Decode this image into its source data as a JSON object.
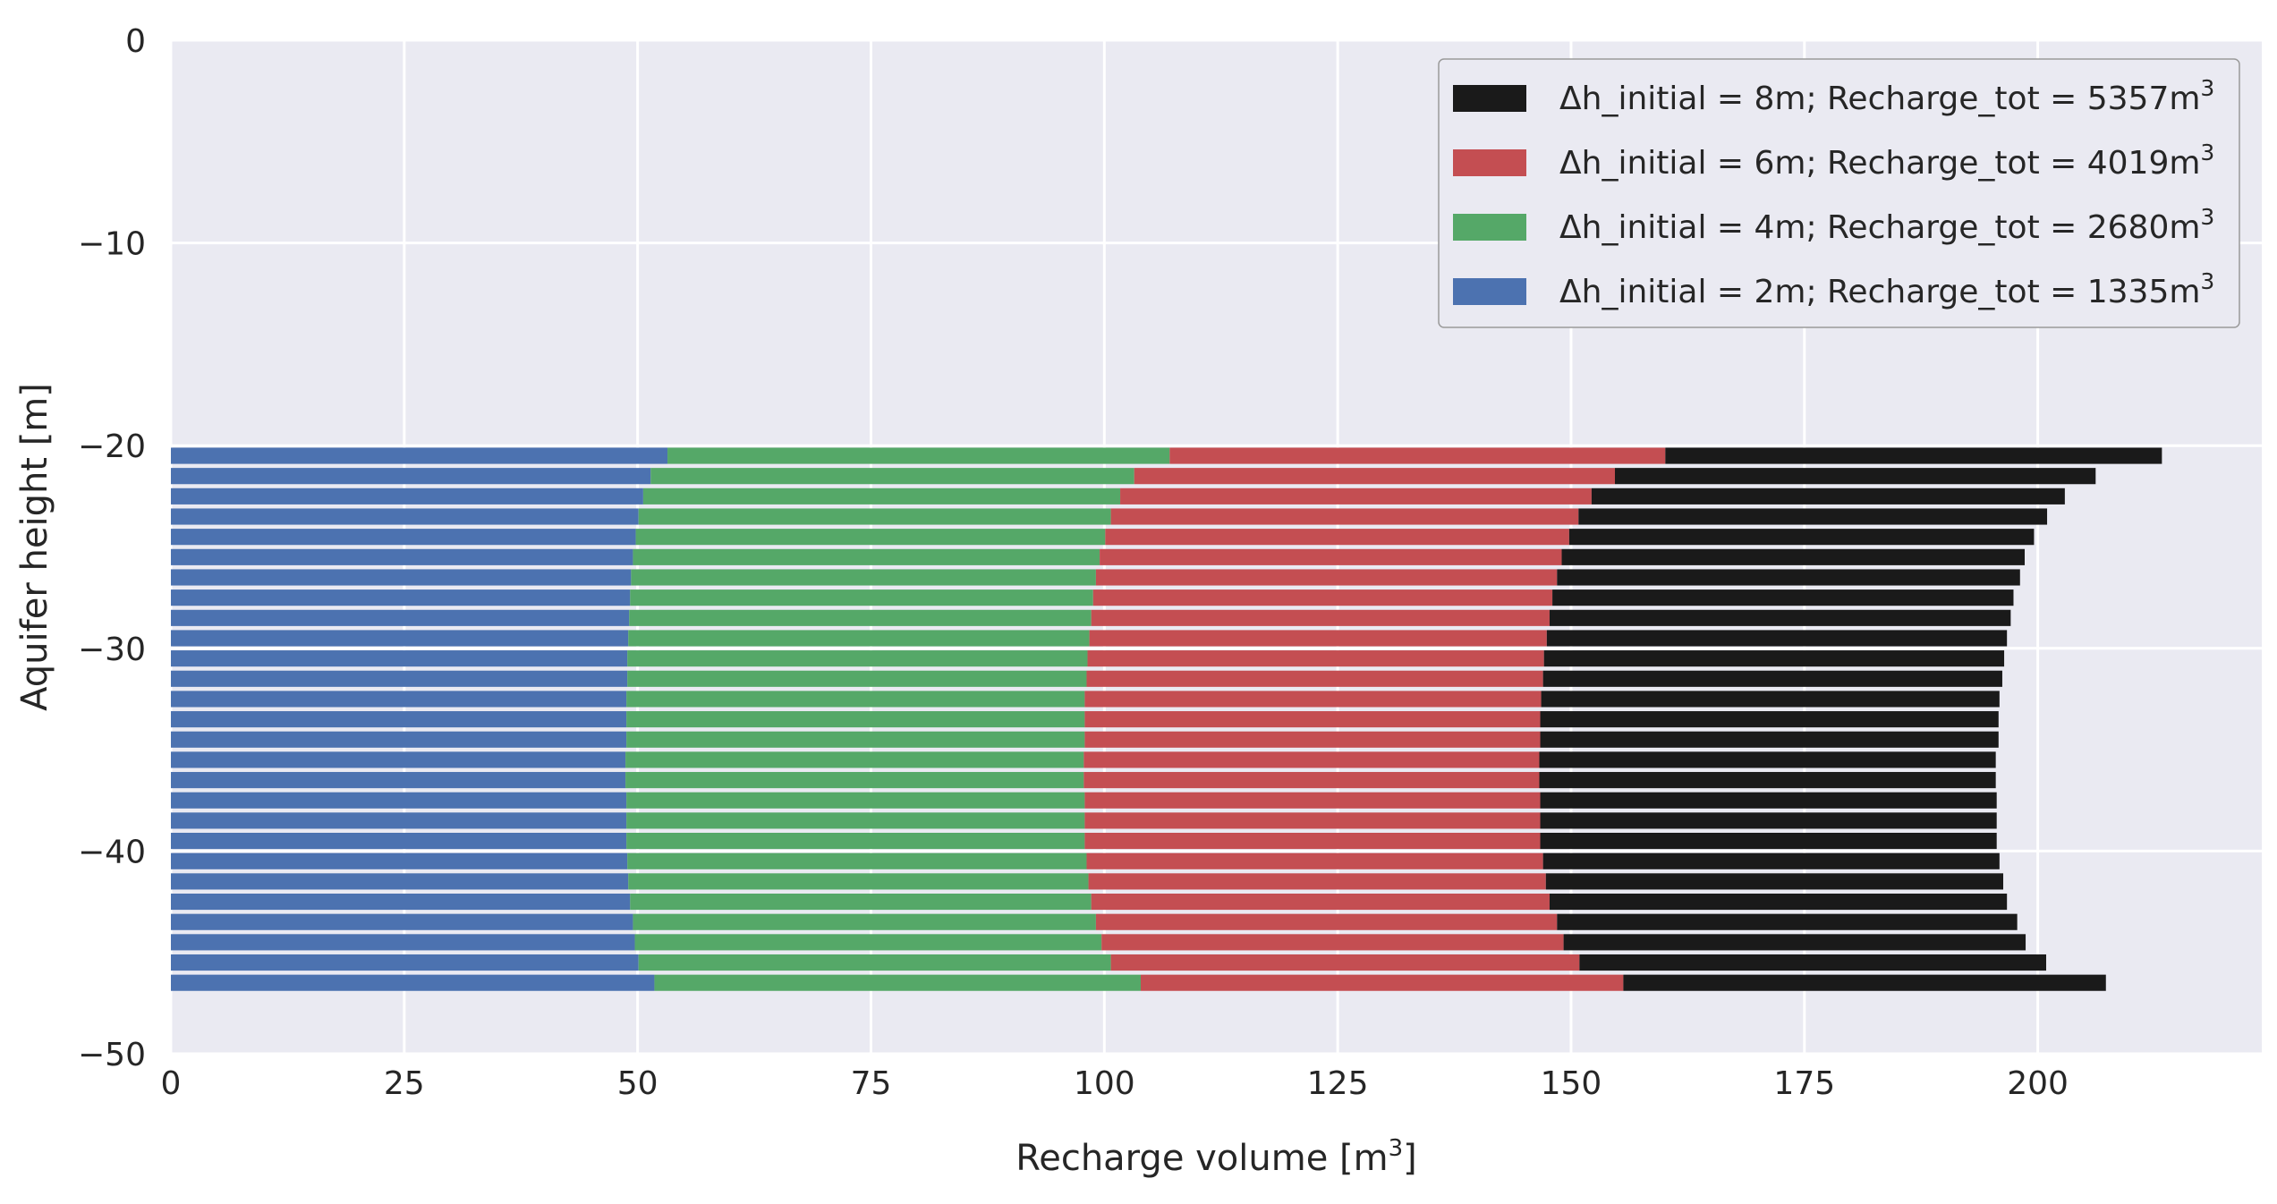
{
  "chart_data": {
    "type": "bar",
    "orientation": "horizontal",
    "stacked": true,
    "xlabel": "Recharge volume [m",
    "xlabel_sup": "3",
    "xlabel_end": "]",
    "ylabel": "Aquifer height [m]",
    "xlim": [
      0,
      224
    ],
    "ylim": [
      -50,
      0
    ],
    "xticks": [
      0,
      25,
      50,
      75,
      100,
      125,
      150,
      175,
      200
    ],
    "yticks": [
      0,
      -10,
      -20,
      -30,
      -40,
      -50
    ],
    "xtick_labels": [
      "0",
      "25",
      "50",
      "75",
      "100",
      "125",
      "150",
      "175",
      "200"
    ],
    "ytick_labels": [
      "0",
      "−10",
      "−20",
      "−30",
      "−40",
      "−50"
    ],
    "grid": true,
    "legend_position": "top-right",
    "background": "#EAEAF2",
    "bar_height": 0.8,
    "categories": [
      -20.5,
      -21.5,
      -22.5,
      -23.5,
      -24.5,
      -25.5,
      -26.5,
      -27.5,
      -28.5,
      -29.5,
      -30.5,
      -31.5,
      -32.5,
      -33.5,
      -34.5,
      -35.5,
      -36.5,
      -37.5,
      -38.5,
      -39.5,
      -40.5,
      -41.5,
      -42.5,
      -43.5,
      -44.5,
      -45.5,
      -46.5
    ],
    "series": [
      {
        "name": "Δh_initial = 2m; Recharge_tot = 1335m",
        "name_sup": "3",
        "color": "#4C72B0",
        "values": [
          53.2,
          51.4,
          50.6,
          50.1,
          49.8,
          49.5,
          49.3,
          49.2,
          49.1,
          49.0,
          48.9,
          48.9,
          48.8,
          48.8,
          48.8,
          48.7,
          48.7,
          48.8,
          48.8,
          48.8,
          48.9,
          49.0,
          49.2,
          49.5,
          49.7,
          50.1,
          51.8
        ]
      },
      {
        "name": "Δh_initial = 4m; Recharge_tot = 2680m",
        "name_sup": "3",
        "color": "#55A868",
        "values": [
          53.8,
          51.8,
          51.1,
          50.6,
          50.3,
          50.0,
          49.8,
          49.6,
          49.5,
          49.4,
          49.3,
          49.2,
          49.1,
          49.1,
          49.1,
          49.1,
          49.1,
          49.1,
          49.1,
          49.1,
          49.2,
          49.3,
          49.4,
          49.6,
          50.0,
          50.6,
          52.1
        ]
      },
      {
        "name": "Δh_initial = 6m; Recharge_tot = 4019m",
        "name_sup": "3",
        "color": "#C44E52",
        "values": [
          53.1,
          51.5,
          50.5,
          50.1,
          49.7,
          49.5,
          49.4,
          49.2,
          49.1,
          49.0,
          48.9,
          48.9,
          48.9,
          48.8,
          48.8,
          48.8,
          48.8,
          48.8,
          48.8,
          48.8,
          48.9,
          49.0,
          49.1,
          49.4,
          49.5,
          50.2,
          51.7
        ]
      },
      {
        "name": "Δh_initial = 8m; Recharge_tot = 5357m",
        "name_sup": "3",
        "color": "#1A1A1A",
        "values": [
          53.2,
          51.5,
          50.7,
          50.2,
          49.8,
          49.6,
          49.6,
          49.4,
          49.4,
          49.3,
          49.3,
          49.2,
          49.1,
          49.1,
          49.1,
          48.9,
          48.9,
          48.9,
          48.9,
          48.9,
          48.9,
          49.0,
          49.0,
          49.3,
          49.5,
          50.0,
          51.7
        ]
      }
    ]
  }
}
